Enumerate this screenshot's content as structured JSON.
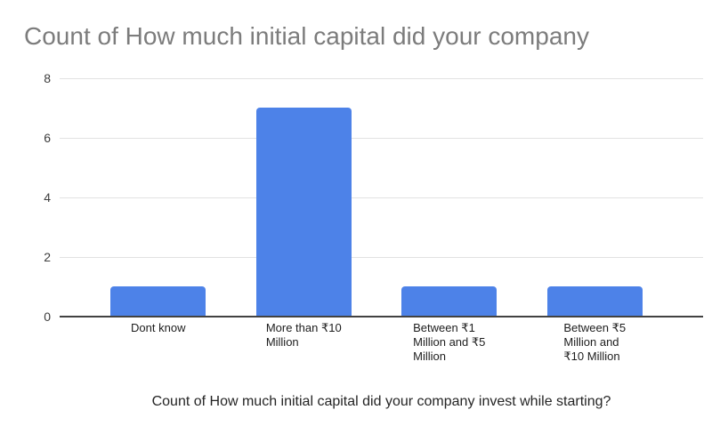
{
  "colors": {
    "background": "#ffffff",
    "bar": "#4d82e8",
    "chart_title_text": "#7c7c7c",
    "axis_label_text": "#1d1d1d",
    "ytick_text": "#3d3d3d",
    "gridline": "#e2e2e2",
    "baseline": "#424242"
  },
  "chart_data": {
    "type": "bar",
    "title": "Count of How much initial capital did your company",
    "xlabel": "Count of How much initial capital did your company invest while starting?",
    "ylabel": "",
    "categories": [
      "Dont know",
      "More than ₹10 Million",
      "Between ₹1 Million and ₹5 Million",
      "Between ₹5 Million and ₹10 Million"
    ],
    "category_labels": [
      [
        "Dont know"
      ],
      [
        "More than ₹10",
        "Million"
      ],
      [
        "Between ₹1",
        "Million and ₹5",
        "Million"
      ],
      [
        "Between ₹5",
        "Million and",
        "₹10 Million"
      ]
    ],
    "values": [
      1,
      7,
      1,
      1
    ],
    "ylim": [
      0,
      8
    ],
    "yticks": [
      0,
      2,
      4,
      6,
      8
    ],
    "grid": true,
    "legend": "none",
    "bar_color": "#4d82e8"
  }
}
